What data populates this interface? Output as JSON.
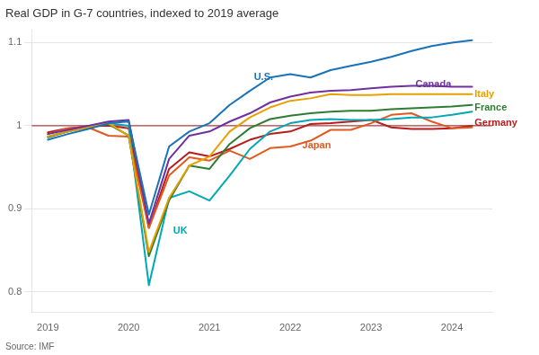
{
  "chart_data": {
    "type": "line",
    "title": "Real GDP in G-7 countries, indexed to 2019 average",
    "x": [
      2019,
      2019.25,
      2019.5,
      2019.75,
      2020,
      2020.25,
      2020.5,
      2020.75,
      2021,
      2021.25,
      2021.5,
      2021.75,
      2022,
      2022.25,
      2022.5,
      2022.75,
      2023,
      2023.25,
      2023.5,
      2023.75,
      2024,
      2024.25
    ],
    "series": [
      {
        "name": "U.S.",
        "color": "#1a72b8",
        "values": [
          0.983,
          0.99,
          0.996,
          1.003,
          1.005,
          0.893,
          0.975,
          0.993,
          1.003,
          1.025,
          1.042,
          1.058,
          1.062,
          1.058,
          1.067,
          1.072,
          1.077,
          1.083,
          1.09,
          1.096,
          1.1,
          1.103
        ]
      },
      {
        "name": "Canada",
        "color": "#7030a0",
        "values": [
          0.99,
          0.995,
          1.0,
          1.005,
          1.007,
          0.882,
          0.96,
          0.988,
          0.993,
          1.005,
          1.015,
          1.028,
          1.035,
          1.04,
          1.042,
          1.043,
          1.045,
          1.047,
          1.048,
          1.048,
          1.047,
          1.047
        ]
      },
      {
        "name": "Italy",
        "color": "#e8a000",
        "values": [
          0.987,
          0.993,
          0.998,
          1.003,
          0.988,
          0.848,
          0.913,
          0.952,
          0.963,
          0.993,
          1.01,
          1.022,
          1.03,
          1.033,
          1.038,
          1.037,
          1.037,
          1.038,
          1.038,
          1.038,
          1.038,
          1.038
        ]
      },
      {
        "name": "France",
        "color": "#2e7d32",
        "values": [
          0.986,
          0.993,
          0.998,
          1.002,
          0.988,
          0.843,
          0.91,
          0.952,
          0.948,
          0.978,
          0.997,
          1.008,
          1.012,
          1.015,
          1.017,
          1.018,
          1.018,
          1.02,
          1.021,
          1.022,
          1.023,
          1.025
        ]
      },
      {
        "name": "UK",
        "color": "#00a8b5",
        "values": [
          0.987,
          0.993,
          0.999,
          1.003,
          1.0,
          0.808,
          0.913,
          0.921,
          0.91,
          0.94,
          0.972,
          0.993,
          1.003,
          1.007,
          1.008,
          1.007,
          1.007,
          1.008,
          1.01,
          1.01,
          1.013,
          1.017
        ]
      },
      {
        "name": "Japan",
        "color": "#e05a20",
        "values": [
          0.99,
          0.997,
          0.998,
          0.988,
          0.987,
          0.877,
          0.94,
          0.962,
          0.958,
          0.97,
          0.96,
          0.973,
          0.975,
          0.982,
          0.995,
          0.995,
          1.003,
          1.013,
          1.015,
          1.005,
          0.997,
          0.998
        ]
      },
      {
        "name": "Germany",
        "color": "#b71c1c",
        "values": [
          0.992,
          0.997,
          0.999,
          1.0,
          0.997,
          0.877,
          0.948,
          0.968,
          0.963,
          0.972,
          0.983,
          0.99,
          0.993,
          1.002,
          1.003,
          1.005,
          1.007,
          0.998,
          0.996,
          0.996,
          0.997,
          1.0
        ]
      }
    ],
    "reference_lines": [
      {
        "y": 1.0,
        "color": "#b04040"
      }
    ],
    "annotations": [
      {
        "text": "U.S.",
        "x": 2021.55,
        "y": 1.058
      },
      {
        "text": "Canada",
        "x": 2023.55,
        "y": 1.05
      },
      {
        "text": "Italy",
        "x": 2024.28,
        "y": 1.038
      },
      {
        "text": "France",
        "x": 2024.28,
        "y": 1.022
      },
      {
        "text": "UK",
        "x": 2020.55,
        "y": 0.873
      },
      {
        "text": "Japan",
        "x": 2022.15,
        "y": 0.976
      },
      {
        "text": "Germany",
        "x": 2024.28,
        "y": 1.003
      },
      {
        "text": "Source: IMF"
      }
    ],
    "xlim": [
      2018.8,
      2024.5
    ],
    "xticks": [
      2019,
      2020,
      2021,
      2022,
      2023,
      2024
    ],
    "ylim": [
      0.775,
      1.115
    ],
    "yticks": [
      0.8,
      0.9,
      1,
      1.1
    ],
    "grid": "y"
  }
}
